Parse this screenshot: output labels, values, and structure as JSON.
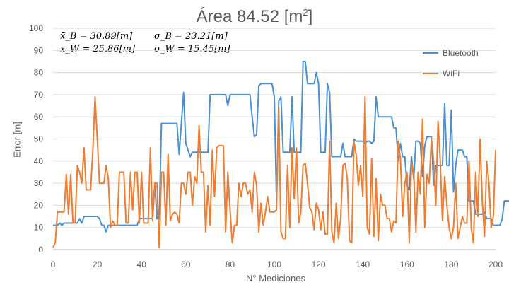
{
  "chart_data": {
    "type": "line",
    "title": "Área 84.52 [m",
    "title_sup": "2",
    "title_end": "]",
    "xlabel": "N° Mediciones",
    "ylabel": "Error [m]",
    "xlim": [
      0,
      200
    ],
    "ylim": [
      0,
      100
    ],
    "x_ticks": [
      0,
      20,
      40,
      60,
      80,
      100,
      120,
      140,
      160,
      180,
      200
    ],
    "y_ticks": [
      0,
      10,
      20,
      30,
      40,
      50,
      60,
      70,
      80,
      90,
      100
    ],
    "grid": "horizontal",
    "legend_position": "right",
    "annotations": {
      "mean_b": "x̄_B = 30.89[m]",
      "mean_w": "x̄_W = 25.86[m]",
      "sigma_b": "σ_B = 23.21[m]",
      "sigma_w": "σ_W = 15.45[m]"
    },
    "series": [
      {
        "name": "Bluetooth",
        "color": "#4a90d0",
        "values": [
          11,
          11,
          11,
          12,
          11,
          12,
          12,
          12,
          12,
          12,
          12,
          12,
          14,
          12,
          15,
          15,
          15,
          15,
          15,
          15,
          15,
          14,
          11,
          11,
          8,
          11,
          11,
          11,
          11,
          11,
          11,
          11,
          11,
          11,
          11,
          11,
          11,
          11,
          11,
          14,
          14,
          14,
          14,
          14,
          14,
          14,
          30,
          14,
          14,
          57,
          57,
          57,
          57,
          57,
          57,
          57,
          57,
          43,
          57,
          71,
          48,
          45,
          42,
          44,
          44,
          44,
          44,
          44,
          44,
          44,
          44,
          70,
          70,
          70,
          70,
          70,
          70,
          70,
          70,
          65,
          70,
          70,
          70,
          70,
          70,
          70,
          70,
          70,
          70,
          70,
          60,
          51,
          52,
          74,
          75,
          75,
          75,
          75,
          75,
          75,
          69,
          22,
          67,
          69,
          44,
          44,
          44,
          44,
          69,
          44,
          44,
          44,
          44,
          85,
          85,
          75,
          75,
          75,
          75,
          80,
          75,
          44,
          44,
          44,
          75,
          71,
          42,
          42,
          42,
          42,
          42,
          48,
          42,
          42,
          42,
          42,
          50,
          49,
          49,
          49,
          49,
          48,
          49,
          49,
          48,
          49,
          69,
          60,
          60,
          60,
          60,
          60,
          60,
          60,
          55,
          55,
          40,
          48,
          42,
          42,
          29,
          27,
          42,
          32,
          49,
          49,
          48,
          33,
          47,
          51,
          51,
          51,
          29,
          38,
          38,
          38,
          38,
          66,
          38,
          38,
          63,
          26,
          38,
          45,
          45,
          45,
          42,
          42,
          22,
          22,
          22,
          16,
          16,
          16,
          16,
          17,
          14,
          14,
          14,
          11,
          11,
          11,
          11,
          14,
          22,
          22,
          22,
          22,
          22,
          22
        ]
      },
      {
        "name": "WiFi",
        "color": "#ed7d31",
        "values": [
          1,
          3,
          17,
          17,
          17,
          17,
          34,
          16,
          34,
          12,
          12,
          38,
          35,
          30,
          46,
          27,
          27,
          27,
          45,
          69,
          50,
          30,
          30,
          30,
          38,
          32,
          10,
          13,
          11,
          11,
          35,
          35,
          35,
          12,
          12,
          35,
          18,
          35,
          35,
          12,
          35,
          12,
          12,
          12,
          46,
          13,
          30,
          30,
          1,
          35,
          35,
          11,
          43,
          13,
          16,
          17,
          16,
          12,
          30,
          30,
          25,
          35,
          35,
          20,
          33,
          30,
          56,
          35,
          35,
          8,
          29,
          11,
          45,
          24,
          46,
          47,
          47,
          47,
          8,
          35,
          18,
          3,
          11,
          11,
          30,
          24,
          30,
          30,
          25,
          27,
          17,
          35,
          29,
          8,
          21,
          11,
          17,
          24,
          17,
          17,
          17,
          18,
          64,
          8,
          5,
          5,
          38,
          10,
          46,
          23,
          46,
          12,
          17,
          38,
          39,
          30,
          19,
          17,
          9,
          21,
          18,
          9,
          17,
          7,
          7,
          49,
          8,
          3,
          21,
          5,
          14,
          38,
          39,
          32,
          4,
          3,
          49,
          43,
          29,
          38,
          24,
          69,
          10,
          7,
          41,
          6,
          32,
          4,
          25,
          20,
          20,
          14,
          14,
          8,
          13,
          12,
          49,
          41,
          15,
          30,
          35,
          3,
          39,
          35,
          8,
          35,
          25,
          59,
          10,
          34,
          30,
          50,
          40,
          20,
          58,
          40,
          13,
          33,
          20,
          10,
          5,
          10,
          30,
          5,
          10,
          15,
          12,
          12,
          40,
          10,
          3,
          35,
          15,
          50,
          22,
          6,
          40,
          30,
          10,
          15,
          45
        ]
      }
    ]
  }
}
